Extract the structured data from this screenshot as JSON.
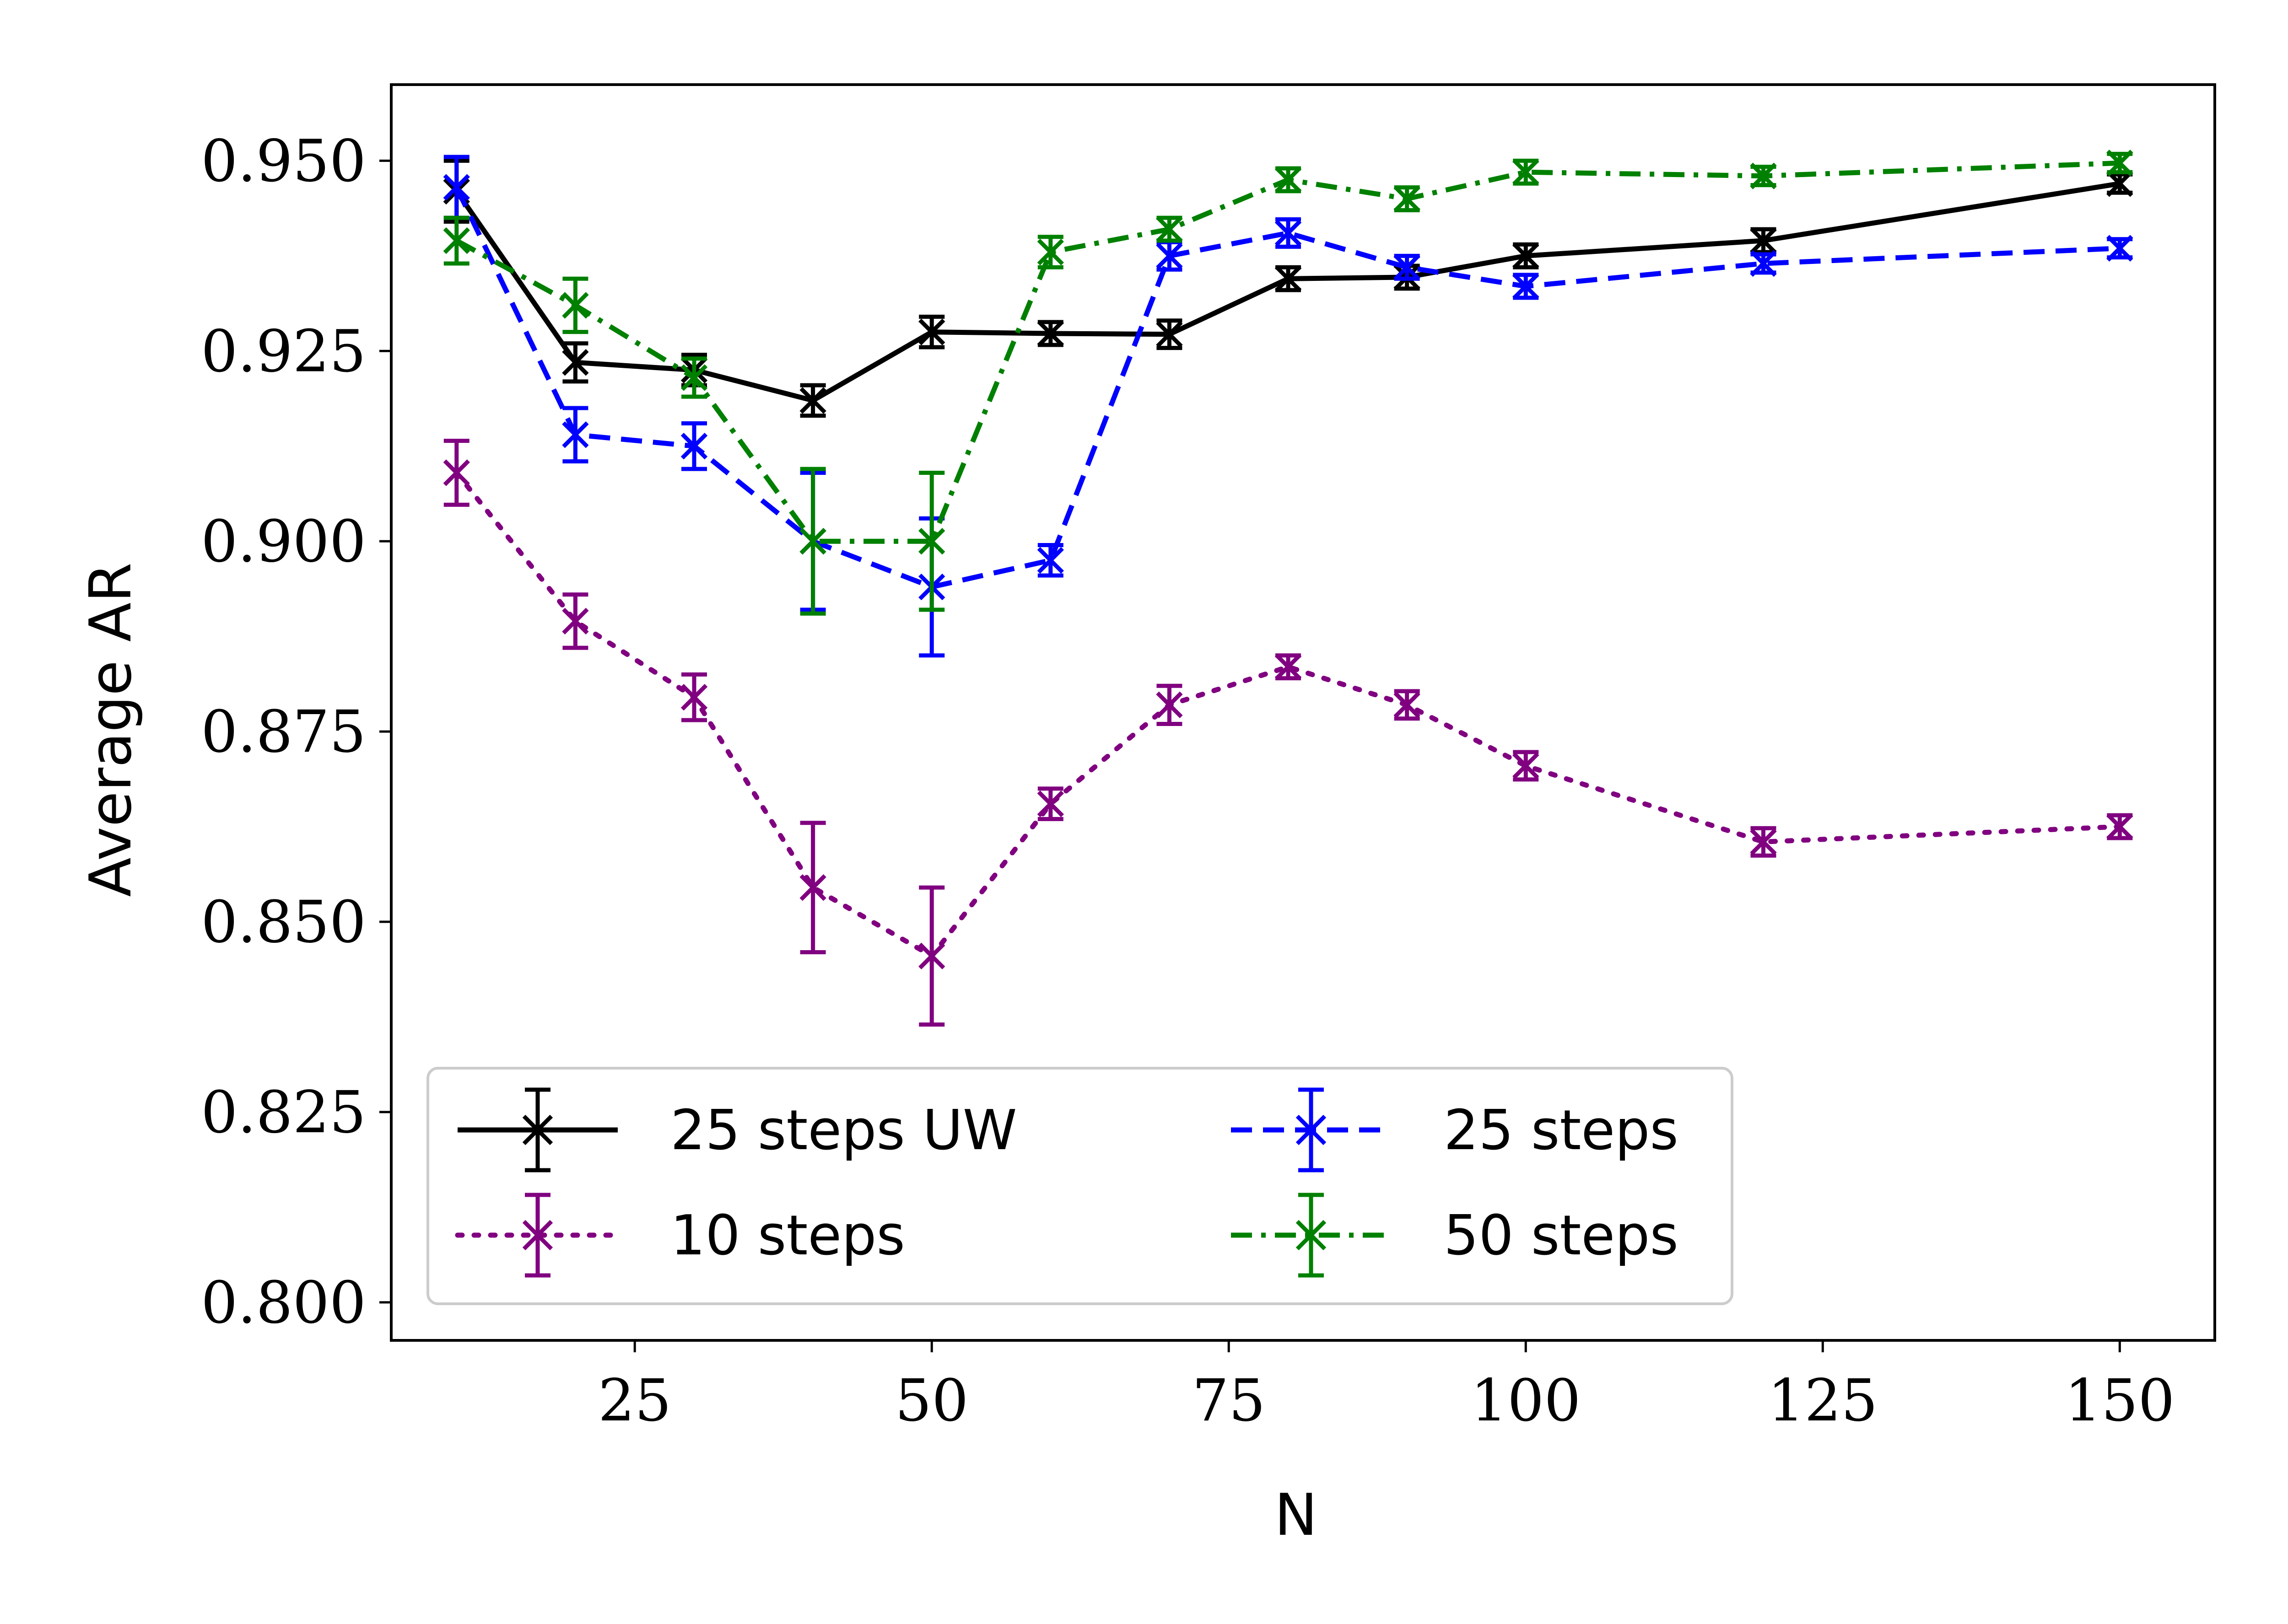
{
  "chart_data": {
    "type": "line",
    "title": "",
    "xlabel": "N",
    "ylabel": "Average AR",
    "xlim": [
      4.5,
      158
    ],
    "ylim": [
      0.795,
      0.96
    ],
    "x": [
      10,
      20,
      30,
      40,
      50,
      60,
      70,
      80,
      90,
      100,
      120,
      150
    ],
    "xticks": [
      25,
      50,
      75,
      100,
      125,
      150
    ],
    "xtick_labels": [
      "25",
      "50",
      "75",
      "100",
      "125",
      "150"
    ],
    "yticks": [
      0.8,
      0.825,
      0.85,
      0.875,
      0.9,
      0.925,
      0.95
    ],
    "ytick_labels": [
      "0.800",
      "0.825",
      "0.850",
      "0.875",
      "0.900",
      "0.925",
      "0.950"
    ],
    "grid": false,
    "legend_position": "lower-left",
    "series": [
      {
        "name": "25 steps UW",
        "color": "#000000",
        "linestyle": "solid",
        "marker": "x",
        "values": [
          0.946,
          0.9235,
          0.9225,
          0.9185,
          0.9275,
          0.9273,
          0.9272,
          0.9345,
          0.9347,
          0.9375,
          0.9395,
          0.947
        ],
        "errors": [
          0.004,
          0.0025,
          0.002,
          0.002,
          0.002,
          0.0015,
          0.0018,
          0.0015,
          0.0015,
          0.0015,
          0.0015,
          0.0012
        ]
      },
      {
        "name": "10 steps",
        "color": "#800080",
        "linestyle": "dotted",
        "marker": "x",
        "values": [
          0.909,
          0.8895,
          0.8795,
          0.8545,
          0.8455,
          0.8655,
          0.8785,
          0.8835,
          0.8785,
          0.8705,
          0.8605,
          0.8625
        ],
        "errors": [
          0.0042,
          0.0035,
          0.003,
          0.0085,
          0.009,
          0.002,
          0.0025,
          0.0015,
          0.0018,
          0.0018,
          0.0018,
          0.0015
        ]
      },
      {
        "name": "25 steps",
        "color": "#0000ff",
        "linestyle": "dashed",
        "marker": "x",
        "values": [
          0.9465,
          0.914,
          0.9125,
          0.9,
          0.894,
          0.8975,
          0.9375,
          0.9405,
          0.936,
          0.9335,
          0.9365,
          0.9385
        ],
        "errors": [
          0.004,
          0.0035,
          0.003,
          0.009,
          0.009,
          0.002,
          0.0018,
          0.0018,
          0.0015,
          0.0015,
          0.0012,
          0.0012
        ]
      },
      {
        "name": "50 steps",
        "color": "#008000",
        "linestyle": "dashdot",
        "marker": "x",
        "values": [
          0.9395,
          0.931,
          0.9215,
          0.9,
          0.9,
          0.938,
          0.941,
          0.9475,
          0.945,
          0.9485,
          0.948,
          0.9497
        ],
        "errors": [
          0.003,
          0.0035,
          0.0025,
          0.0095,
          0.009,
          0.002,
          0.0015,
          0.0015,
          0.0015,
          0.0015,
          0.0012,
          0.0012
        ]
      }
    ]
  }
}
